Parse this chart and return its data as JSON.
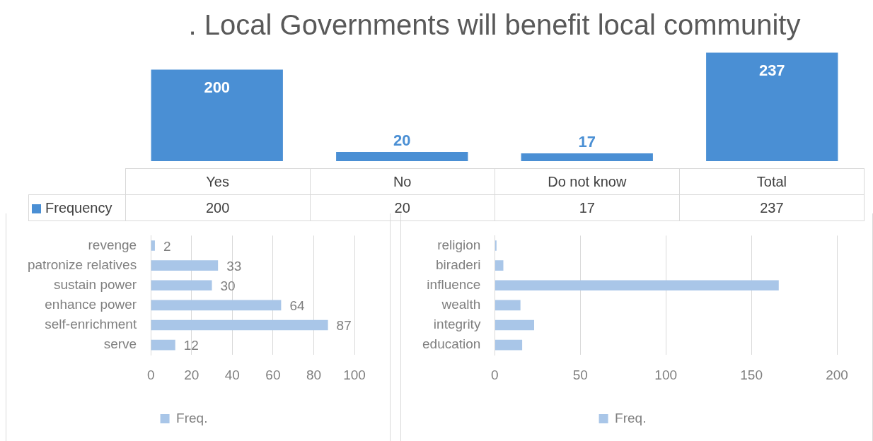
{
  "chart_data": [
    {
      "type": "bar",
      "title": ". Local Governments will benefit local community",
      "categories": [
        "Yes",
        "No",
        "Do not know",
        "Total"
      ],
      "series": [
        {
          "name": "Frequency",
          "color": "#4a8fd4",
          "values": [
            200,
            20,
            17,
            237
          ]
        }
      ],
      "annotations": [
        "200",
        "20",
        "17",
        "237"
      ],
      "data_labels": true,
      "grid": false,
      "legend": "bottom left"
    },
    {
      "type": "bar",
      "orientation": "horizontal",
      "categories": [
        "revenge",
        "patronize relatives",
        "sustain power",
        "enhance power",
        "self-enrichment",
        "serve"
      ],
      "series": [
        {
          "name": "Freq.",
          "color": "#a9c6e8",
          "values": [
            2,
            33,
            30,
            64,
            87,
            12
          ]
        }
      ],
      "xlim": [
        0,
        100
      ],
      "xticks": [
        0,
        20,
        40,
        60,
        80,
        100
      ],
      "data_labels": true,
      "grid": "x",
      "legend": "bottom"
    },
    {
      "type": "bar",
      "orientation": "horizontal",
      "categories": [
        "religion",
        "biraderi",
        "influence",
        "wealth",
        "integrity",
        "education"
      ],
      "series": [
        {
          "name": "Freq.",
          "color": "#a9c6e8",
          "values": [
            1,
            5,
            166,
            15,
            23,
            16
          ]
        }
      ],
      "xlim": [
        0,
        200
      ],
      "xticks": [
        0,
        50,
        100,
        150,
        200
      ],
      "grid": "x",
      "legend": "bottom"
    }
  ]
}
